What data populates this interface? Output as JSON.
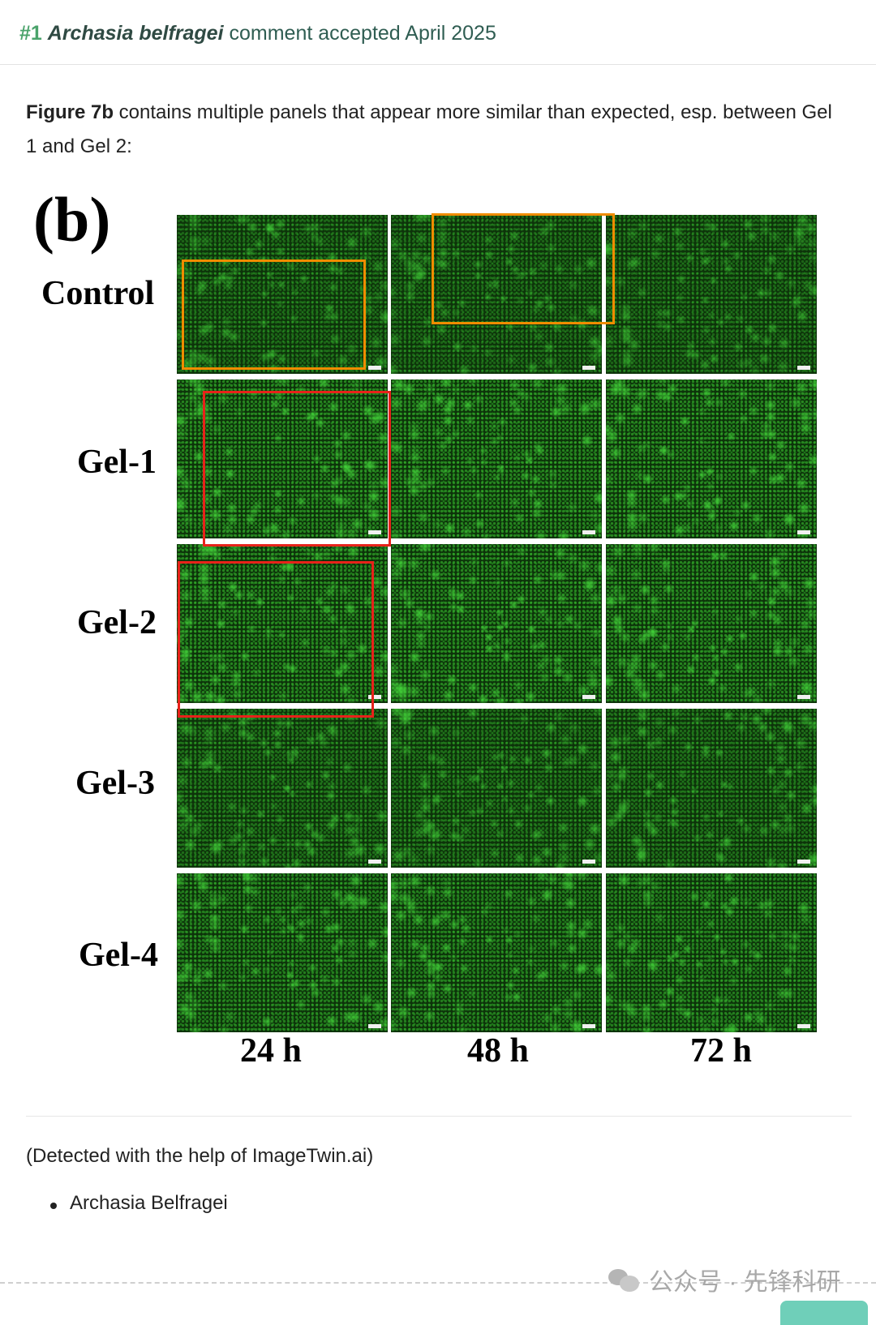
{
  "header": {
    "number": "#1",
    "author": "Archasia belfragei",
    "text": "comment accepted April 2025"
  },
  "intro": {
    "bold": "Figure 7b",
    "text": " contains multiple panels that appear more similar than expected, esp. between Gel 1 and Gel 2:"
  },
  "figure": {
    "panel_letter": "(b)",
    "rows": [
      "Control",
      "Gel-1",
      "Gel-2",
      "Gel-3",
      "Gel-4"
    ],
    "columns": [
      "24 h",
      "48 h",
      "72 h"
    ],
    "colors": {
      "cells": "#39d236",
      "background": "#0f3a0c",
      "duplicate_a": "#f08c00",
      "duplicate_b": "#e8221a"
    }
  },
  "detected_note": "(Detected with the help of ImageTwin.ai)",
  "authors": [
    "Archasia Belfragei"
  ],
  "watermark": "公众号 · 先锋科研"
}
